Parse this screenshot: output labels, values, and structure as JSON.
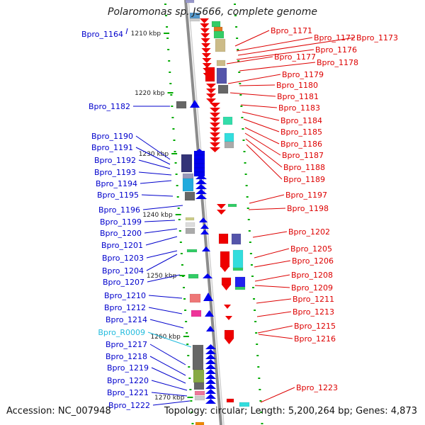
{
  "title": "Polaromonas sp. JS666, complete genome",
  "accession": "Accession: NC_007948",
  "topology": "Topology: circular; Length: 5,200,264 bp; Genes: 4,873",
  "colors": {
    "backbone": "#8c8c8c",
    "left_label": "#0000cc",
    "right_label": "#dd0000",
    "rna_label": "#22bbdd",
    "tick": "#00aa00"
  },
  "kbp_ticks": [
    "1210 kbp",
    "1220 kbp",
    "1230 kbp",
    "1240 kbp",
    "1250 kbp",
    "1260 kbp",
    "1270 kbp"
  ],
  "left_labels": [
    "Bpro_1164",
    "Bpro_1182",
    "Bpro_1190",
    "Bpro_1191",
    "Bpro_1192",
    "Bpro_1193",
    "Bpro_1194",
    "Bpro_1195",
    "Bpro_1196",
    "Bpro_1199",
    "Bpro_1200",
    "Bpro_1201",
    "Bpro_1203",
    "Bpro_1204",
    "Bpro_1207",
    "Bpro_1210",
    "Bpro_1212",
    "Bpro_1214",
    "Bpro_R0009",
    "Bpro_1217",
    "Bpro_1218",
    "Bpro_1219",
    "Bpro_1220",
    "Bpro_1221",
    "Bpro_1222"
  ],
  "right_labels": [
    "Bpro_1171",
    "Bpro_1172",
    "Bpro_1173",
    "Bpro_1176",
    "Bpro_1177",
    "Bpro_1178",
    "Bpro_1179",
    "Bpro_1180",
    "Bpro_1181",
    "Bpro_1183",
    "Bpro_1184",
    "Bpro_1185",
    "Bpro_1186",
    "Bpro_1187",
    "Bpro_1188",
    "Bpro_1189",
    "Bpro_1197",
    "Bpro_1198",
    "Bpro_1202",
    "Bpro_1205",
    "Bpro_1206",
    "Bpro_1208",
    "Bpro_1209",
    "Bpro_1211",
    "Bpro_1213",
    "Bpro_1215",
    "Bpro_1216",
    "Bpro_1223"
  ]
}
